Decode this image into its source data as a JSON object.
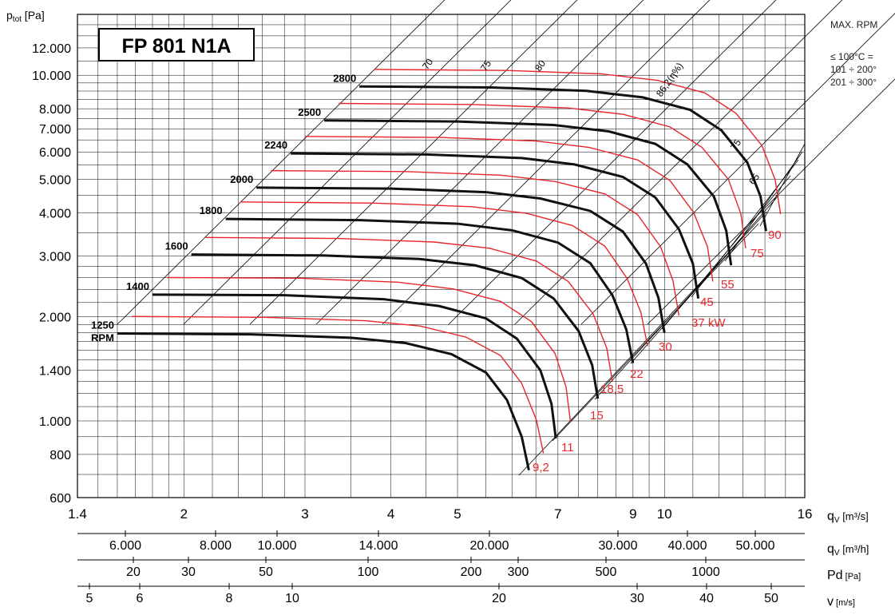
{
  "chart_data": {
    "type": "line",
    "title": "FP 801 N1A",
    "ylabel_main": "p",
    "ylabel_sub": "tot",
    "ylabel_unit": "[Pa]",
    "y_scale": "log",
    "x_scale": "log",
    "ylim": [
      600,
      15000
    ],
    "xlim": [
      1.4,
      16
    ],
    "yticks": [
      600,
      800,
      1000,
      1400,
      2000,
      3000,
      4000,
      5000,
      6000,
      7000,
      8000,
      10000,
      12000
    ],
    "ytick_labels": [
      "600",
      "800",
      "1.000",
      "1.400",
      "2.000",
      "3.000",
      "4.000",
      "5.000",
      "6.000",
      "7.000",
      "8.000",
      "10.000",
      "12.000"
    ],
    "xticks": [
      1.4,
      2,
      3,
      4,
      5,
      7,
      9,
      10,
      16
    ],
    "xtick_labels": [
      "1.4",
      "2",
      "3",
      "4",
      "5",
      "7",
      "9",
      "10",
      "16"
    ],
    "x_axis_label": "q",
    "x_axis_sub": "V",
    "x_axis_unit": "[m³/s]",
    "extra_axes": [
      {
        "label": "q",
        "sub": "V",
        "unit": "[m³/h]",
        "ticks": [
          "6.000",
          "8.000",
          "10.000",
          "14.000",
          "20.000",
          "30.000",
          "40.000",
          "50.000"
        ],
        "values": [
          6000,
          8000,
          10000,
          14000,
          20000,
          30000,
          40000,
          50000
        ]
      },
      {
        "label": "Pd",
        "sub": "",
        "unit": "[Pa]",
        "ticks": [
          "20",
          "30",
          "50",
          "100",
          "200",
          "300",
          "500",
          "1000"
        ],
        "values": [
          20,
          30,
          50,
          100,
          200,
          300,
          500,
          1000
        ]
      },
      {
        "label": "v",
        "sub": "",
        "unit": "[m/s]",
        "ticks": [
          "5",
          "6",
          "8",
          "10",
          "20",
          "30",
          "40",
          "50"
        ],
        "values": [
          5,
          6,
          8,
          10,
          20,
          30,
          40,
          50
        ]
      }
    ],
    "speed_curves": [
      {
        "name": "1250",
        "unit": "RPM",
        "x": [
          1.6,
          2.5,
          3.5,
          4.2,
          4.9,
          5.5,
          5.9,
          6.2,
          6.35
        ],
        "y": [
          1790,
          1780,
          1740,
          1680,
          1560,
          1380,
          1150,
          900,
          720
        ]
      },
      {
        "name": "1400",
        "x": [
          1.8,
          2.8,
          3.9,
          4.7,
          5.5,
          6.1,
          6.6,
          6.85,
          6.95
        ],
        "y": [
          2320,
          2310,
          2250,
          2150,
          1980,
          1730,
          1400,
          1120,
          890
        ]
      },
      {
        "name": "1600",
        "x": [
          2.05,
          3.2,
          4.4,
          5.3,
          6.2,
          6.9,
          7.5,
          7.85,
          8.0
        ],
        "y": [
          3030,
          3010,
          2940,
          2820,
          2590,
          2260,
          1820,
          1450,
          1160
        ]
      },
      {
        "name": "1800",
        "x": [
          2.3,
          3.6,
          5.0,
          6.0,
          7.0,
          7.8,
          8.4,
          8.8,
          9.0
        ],
        "y": [
          3840,
          3810,
          3720,
          3560,
          3280,
          2860,
          2310,
          1840,
          1470
        ]
      },
      {
        "name": "2000",
        "x": [
          2.55,
          4.0,
          5.5,
          6.6,
          7.8,
          8.7,
          9.4,
          9.8,
          10.0
        ],
        "y": [
          4730,
          4700,
          4590,
          4400,
          4050,
          3530,
          2850,
          2270,
          1800
        ]
      },
      {
        "name": "2240",
        "x": [
          2.86,
          4.5,
          6.2,
          7.4,
          8.7,
          9.7,
          10.5,
          11.0,
          11.2
        ],
        "y": [
          5940,
          5900,
          5760,
          5520,
          5080,
          4430,
          3580,
          2850,
          2260
        ]
      },
      {
        "name": "2500",
        "x": [
          3.2,
          5.0,
          6.9,
          8.3,
          9.7,
          10.8,
          11.8,
          12.3,
          12.5
        ],
        "y": [
          7400,
          7350,
          7180,
          6880,
          6330,
          5520,
          4460,
          3550,
          2820
        ]
      },
      {
        "name": "2800",
        "x": [
          3.6,
          5.6,
          7.7,
          9.3,
          10.9,
          12.1,
          13.2,
          13.8,
          14.05
        ],
        "y": [
          9280,
          9220,
          9010,
          8630,
          7940,
          6930,
          5590,
          4450,
          3540
        ]
      }
    ],
    "power_lines": [
      {
        "label": "9,2",
        "x": [
          6.38,
          6.72
        ],
        "y": [
          720,
          720
        ]
      },
      {
        "label": "11",
        "x": [
          6.97,
          7.28
        ],
        "y": [
          890,
          890
        ]
      },
      {
        "label": "15",
        "x": [
          7.8,
          8.0
        ],
        "y": [
          1000,
          1000
        ]
      },
      {
        "label": "18,5",
        "x": [
          8.0,
          8.3
        ],
        "y": [
          1160,
          1160
        ]
      },
      {
        "label": "22",
        "x": [
          8.9,
          9.2
        ],
        "y": [
          1350,
          1350
        ]
      },
      {
        "label": "30",
        "x": [
          9.6,
          9.9
        ],
        "y": [
          1600,
          1600
        ]
      },
      {
        "label": "37 kW",
        "x": [
          10.0,
          10.5
        ],
        "y": [
          1800,
          1800
        ]
      },
      {
        "label": "45",
        "x": [
          11.1,
          11.6
        ],
        "y": [
          2200,
          2200
        ]
      },
      {
        "label": "55",
        "x": [
          11.9,
          12.2
        ],
        "y": [
          2480,
          2480
        ]
      },
      {
        "label": "75",
        "x": [
          12.5,
          13.0
        ],
        "y": [
          2900,
          2900
        ]
      },
      {
        "label": "90",
        "x": [
          14.0,
          14.4
        ],
        "y": [
          3300,
          3300
        ]
      }
    ],
    "efficiency_labels": [
      "70",
      "75",
      "80",
      "86,2(η%)",
      "75",
      "65"
    ],
    "colors": {
      "speed": "#111111",
      "power": "#e8262b",
      "grid": "#000000",
      "eff": "#000000"
    }
  },
  "side_note": {
    "title": "MAX. RPM",
    "lines": [
      "≤ 100°C =",
      "101 ÷ 200°",
      "201 ÷ 300°"
    ]
  }
}
